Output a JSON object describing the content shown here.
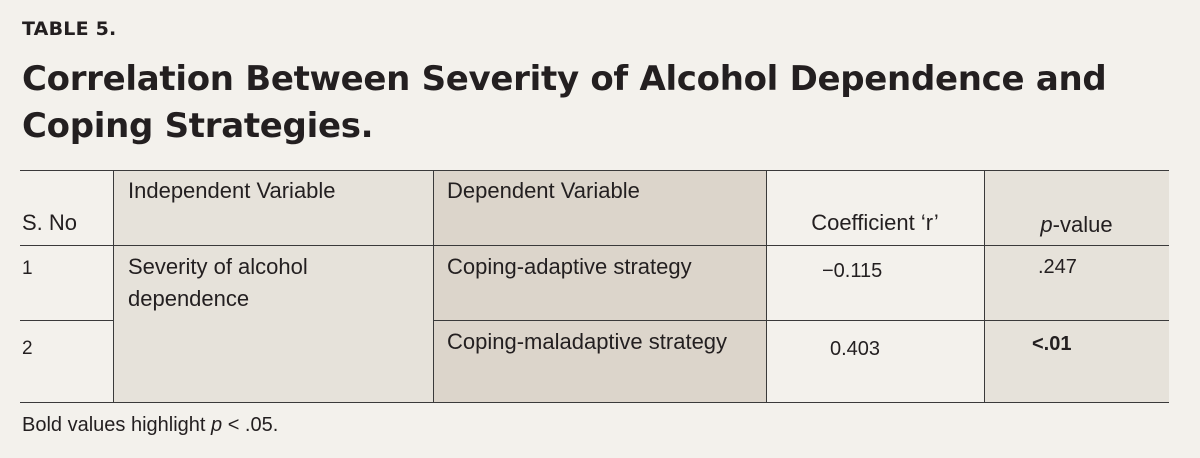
{
  "table_label": "TABLE 5.",
  "title": "Correlation Between Severity of Alcohol Dependence and Coping Strategies.",
  "columns": {
    "sno": "S. No",
    "independent": "Independent Variable",
    "dependent": "Dependent Variable",
    "coefficient": "Coefficient ‘r’",
    "pvalue_italic": "p",
    "pvalue_rest": "-value"
  },
  "rows": [
    {
      "sno": "1",
      "independent": "Severity of alcohol dependence",
      "dependent": "Coping-adaptive strategy",
      "coefficient": "−0.115",
      "pvalue": ".247",
      "bold": false
    },
    {
      "sno": "2",
      "dependent": "Coping-maladaptive strategy",
      "coefficient": "0.403",
      "pvalue": "<.01",
      "bold": true
    }
  ],
  "footnote": {
    "prefix": "Bold values highlight ",
    "italic": "p",
    "suffix": " < .05."
  },
  "colors": {
    "background": "#f3f1ec",
    "shade_light": "#e6e2da",
    "shade_dark": "#dcd5cb",
    "text": "#231f20"
  }
}
